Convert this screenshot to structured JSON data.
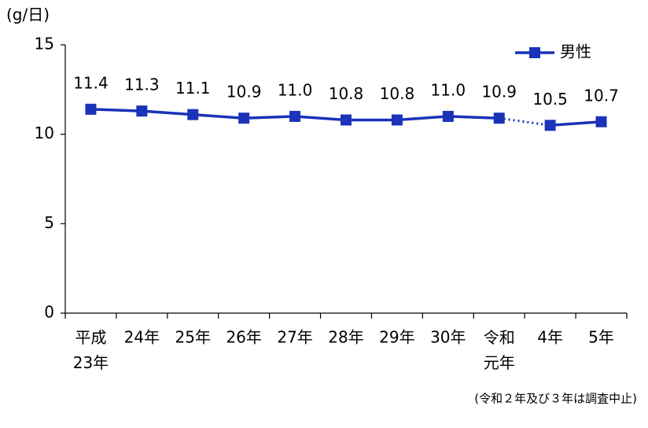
{
  "chart_data": {
    "type": "line",
    "y_label": "(g/日)",
    "categories": [
      "平成\n23年",
      "24年",
      "25年",
      "26年",
      "27年",
      "28年",
      "29年",
      "30年",
      "令和\n元年",
      "4年",
      "5年"
    ],
    "series": [
      {
        "name": "男性",
        "color": "#1a33b8",
        "values": [
          11.4,
          11.3,
          11.1,
          10.9,
          11.0,
          10.8,
          10.8,
          11.0,
          10.9,
          10.5,
          10.7
        ],
        "value_labels": [
          "11.4",
          "11.3",
          "11.1",
          "10.9",
          "11.0",
          "10.8",
          "10.8",
          "11.0",
          "10.9",
          "10.5",
          "10.7"
        ]
      }
    ],
    "dotted_segments": [
      [
        8,
        9
      ]
    ],
    "ylim": [
      0,
      15
    ],
    "yticks": [
      0,
      5,
      10,
      15
    ],
    "grid": false,
    "legend": "top-right",
    "annotation": "(令和２年及び３年は調査中止)"
  }
}
